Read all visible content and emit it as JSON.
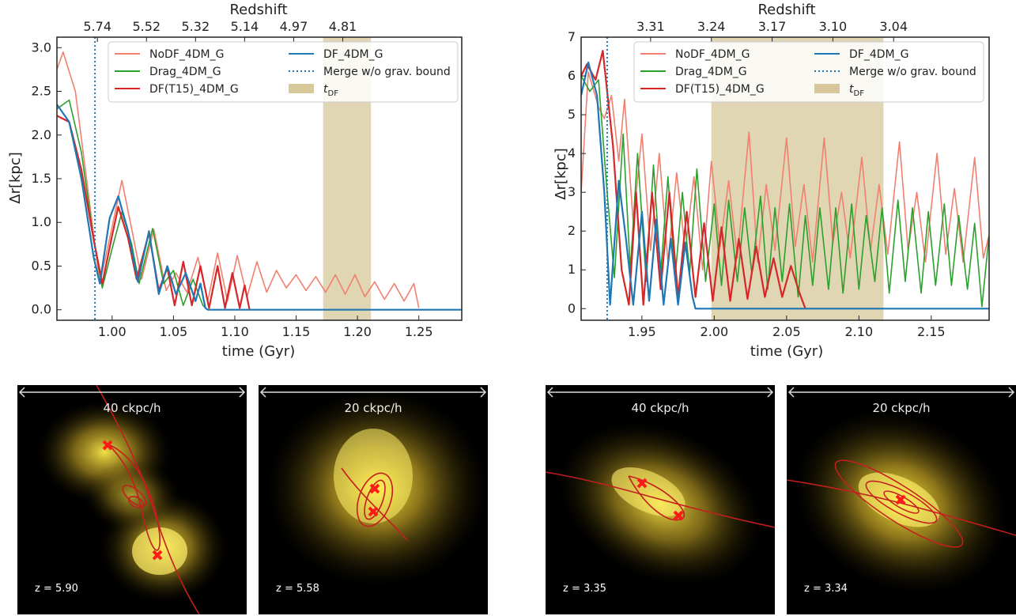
{
  "chart_data": [
    {
      "type": "line",
      "panel": "top-left",
      "xlabel": "time (Gyr)",
      "ylabel": "Δr[kpc]",
      "top_axis_label": "Redshift",
      "xlim": [
        0.955,
        1.285
      ],
      "ylim": [
        -0.12,
        3.12
      ],
      "xticks": [
        "1.00",
        "1.05",
        "1.10",
        "1.15",
        "1.20",
        "1.25"
      ],
      "yticks": [
        "0.0",
        "0.5",
        "1.0",
        "1.5",
        "2.0",
        "2.5",
        "3.0"
      ],
      "redshift_ticks": [
        "5.74",
        "5.52",
        "5.32",
        "5.14",
        "4.97",
        "4.81"
      ],
      "redshift_tick_times": [
        0.988,
        1.028,
        1.068,
        1.108,
        1.148,
        1.188
      ],
      "merge_time": 0.986,
      "tdf_span": [
        1.172,
        1.211
      ],
      "legend_location": "top-right",
      "series": [
        {
          "name": "NoDF_4DM_G",
          "color": "#f08070",
          "end_time": 1.25,
          "points": [
            [
              0.955,
              2.75
            ],
            [
              0.96,
              2.95
            ],
            [
              0.97,
              2.5
            ],
            [
              0.98,
              1.4
            ],
            [
              0.99,
              0.3
            ],
            [
              1.0,
              0.95
            ],
            [
              1.008,
              1.48
            ],
            [
              1.017,
              0.85
            ],
            [
              1.024,
              0.35
            ],
            [
              1.034,
              0.92
            ],
            [
              1.044,
              0.22
            ],
            [
              1.052,
              0.42
            ],
            [
              1.061,
              0.2
            ],
            [
              1.07,
              0.6
            ],
            [
              1.078,
              0.1
            ],
            [
              1.086,
              0.65
            ],
            [
              1.094,
              0.1
            ],
            [
              1.102,
              0.62
            ],
            [
              1.11,
              0.15
            ],
            [
              1.118,
              0.55
            ],
            [
              1.126,
              0.2
            ],
            [
              1.134,
              0.45
            ],
            [
              1.142,
              0.25
            ],
            [
              1.15,
              0.4
            ],
            [
              1.158,
              0.22
            ],
            [
              1.166,
              0.38
            ],
            [
              1.174,
              0.2
            ],
            [
              1.182,
              0.4
            ],
            [
              1.19,
              0.18
            ],
            [
              1.198,
              0.4
            ],
            [
              1.206,
              0.15
            ],
            [
              1.214,
              0.32
            ],
            [
              1.222,
              0.12
            ],
            [
              1.23,
              0.3
            ],
            [
              1.238,
              0.1
            ],
            [
              1.246,
              0.3
            ],
            [
              1.25,
              0.02
            ]
          ]
        },
        {
          "name": "Drag_4DM_G",
          "color": "#2ca02c",
          "end_time": 1.078,
          "points": [
            [
              0.955,
              2.3
            ],
            [
              0.965,
              2.4
            ],
            [
              0.975,
              1.8
            ],
            [
              0.985,
              0.8
            ],
            [
              0.992,
              0.25
            ],
            [
              1.0,
              0.7
            ],
            [
              1.008,
              1.12
            ],
            [
              1.016,
              0.75
            ],
            [
              1.022,
              0.3
            ],
            [
              1.033,
              0.93
            ],
            [
              1.042,
              0.3
            ],
            [
              1.05,
              0.45
            ],
            [
              1.058,
              0.05
            ],
            [
              1.066,
              0.35
            ],
            [
              1.074,
              0.05
            ],
            [
              1.078,
              0.0
            ]
          ]
        },
        {
          "name": "DF(T15)_4DM_G",
          "color": "#d62728",
          "end_time": 1.112,
          "points": [
            [
              0.955,
              2.22
            ],
            [
              0.965,
              2.15
            ],
            [
              0.975,
              1.6
            ],
            [
              0.985,
              0.8
            ],
            [
              0.992,
              0.3
            ],
            [
              1.0,
              0.85
            ],
            [
              1.005,
              1.18
            ],
            [
              1.013,
              0.82
            ],
            [
              1.02,
              0.35
            ],
            [
              1.03,
              0.88
            ],
            [
              1.038,
              0.22
            ],
            [
              1.045,
              0.48
            ],
            [
              1.051,
              0.05
            ],
            [
              1.058,
              0.55
            ],
            [
              1.065,
              0.05
            ],
            [
              1.072,
              0.5
            ],
            [
              1.079,
              0.02
            ],
            [
              1.086,
              0.5
            ],
            [
              1.092,
              0.02
            ],
            [
              1.098,
              0.42
            ],
            [
              1.104,
              0.02
            ],
            [
              1.108,
              0.28
            ],
            [
              1.112,
              0.0
            ]
          ]
        },
        {
          "name": "DF_4DM_G",
          "color": "#1f77b4",
          "end_time": 1.285,
          "points": [
            [
              0.955,
              2.35
            ],
            [
              0.965,
              2.15
            ],
            [
              0.975,
              1.5
            ],
            [
              0.985,
              0.6
            ],
            [
              0.99,
              0.3
            ],
            [
              0.998,
              1.05
            ],
            [
              1.005,
              1.3
            ],
            [
              1.013,
              0.9
            ],
            [
              1.021,
              0.32
            ],
            [
              1.03,
              0.9
            ],
            [
              1.038,
              0.18
            ],
            [
              1.045,
              0.5
            ],
            [
              1.052,
              0.18
            ],
            [
              1.06,
              0.42
            ],
            [
              1.068,
              0.1
            ],
            [
              1.072,
              0.3
            ],
            [
              1.076,
              0.02
            ],
            [
              1.078,
              0.0
            ],
            [
              1.285,
              0.0
            ]
          ]
        }
      ]
    },
    {
      "type": "line",
      "panel": "top-right",
      "xlabel": "time (Gyr)",
      "ylabel": "Δr[kpc]",
      "top_axis_label": "Redshift",
      "xlim": [
        1.908,
        2.19
      ],
      "ylim": [
        -0.3,
        7.0
      ],
      "xticks": [
        "1.95",
        "2.00",
        "2.05",
        "2.10",
        "2.15"
      ],
      "yticks": [
        "0",
        "1",
        "2",
        "3",
        "4",
        "5",
        "6",
        "7"
      ],
      "redshift_ticks": [
        "3.31",
        "3.24",
        "3.17",
        "3.10",
        "3.04"
      ],
      "redshift_tick_times": [
        1.956,
        1.998,
        2.04,
        2.082,
        2.124
      ],
      "merge_time": 1.926,
      "tdf_span": [
        1.998,
        2.117
      ],
      "legend_location": "top-right",
      "series": [
        {
          "name": "NoDF_4DM_G",
          "color": "#f08070",
          "end_time": 2.19,
          "points": [
            [
              1.908,
              3.0
            ],
            [
              1.913,
              6.1
            ],
            [
              1.92,
              5.2
            ],
            [
              1.924,
              4.9
            ],
            [
              1.929,
              5.5
            ],
            [
              1.934,
              3.8
            ],
            [
              1.938,
              5.4
            ],
            [
              1.944,
              2.2
            ],
            [
              1.95,
              4.5
            ],
            [
              1.956,
              1.5
            ],
            [
              1.962,
              4.0
            ],
            [
              1.968,
              1.2
            ],
            [
              1.974,
              3.5
            ],
            [
              1.98,
              1.5
            ],
            [
              1.986,
              3.4
            ],
            [
              1.992,
              1.0
            ],
            [
              1.998,
              3.8
            ],
            [
              2.004,
              1.6
            ],
            [
              2.01,
              3.3
            ],
            [
              2.016,
              1.3
            ],
            [
              2.024,
              4.55
            ],
            [
              2.03,
              1.2
            ],
            [
              2.036,
              3.2
            ],
            [
              2.042,
              1.5
            ],
            [
              2.05,
              4.4
            ],
            [
              2.056,
              1.6
            ],
            [
              2.062,
              3.2
            ],
            [
              2.068,
              1.2
            ],
            [
              2.076,
              4.4
            ],
            [
              2.082,
              1.7
            ],
            [
              2.088,
              3.0
            ],
            [
              2.094,
              1.3
            ],
            [
              2.102,
              3.9
            ],
            [
              2.108,
              1.5
            ],
            [
              2.114,
              3.2
            ],
            [
              2.12,
              1.4
            ],
            [
              2.128,
              4.3
            ],
            [
              2.134,
              1.5
            ],
            [
              2.14,
              3.0
            ],
            [
              2.146,
              1.2
            ],
            [
              2.154,
              4.0
            ],
            [
              2.16,
              1.4
            ],
            [
              2.166,
              3.1
            ],
            [
              2.172,
              1.2
            ],
            [
              2.18,
              3.9
            ],
            [
              2.186,
              1.3
            ],
            [
              2.19,
              1.9
            ]
          ]
        },
        {
          "name": "Drag_4DM_G",
          "color": "#2ca02c",
          "end_time": 2.19,
          "points": [
            [
              1.908,
              6.0
            ],
            [
              1.914,
              5.6
            ],
            [
              1.92,
              5.9
            ],
            [
              1.926,
              3.0
            ],
            [
              1.931,
              0.8
            ],
            [
              1.937,
              4.5
            ],
            [
              1.942,
              1.0
            ],
            [
              1.947,
              4.0
            ],
            [
              1.953,
              0.7
            ],
            [
              1.958,
              3.7
            ],
            [
              1.963,
              0.9
            ],
            [
              1.968,
              3.4
            ],
            [
              1.973,
              0.8
            ],
            [
              1.978,
              3.0
            ],
            [
              1.983,
              0.9
            ],
            [
              1.988,
              3.6
            ],
            [
              1.994,
              0.7
            ],
            [
              2.0,
              2.7
            ],
            [
              2.005,
              0.6
            ],
            [
              2.01,
              2.8
            ],
            [
              2.016,
              0.7
            ],
            [
              2.021,
              2.6
            ],
            [
              2.026,
              0.9
            ],
            [
              2.032,
              2.9
            ],
            [
              2.037,
              0.5
            ],
            [
              2.042,
              2.6
            ],
            [
              2.047,
              0.7
            ],
            [
              2.052,
              2.7
            ],
            [
              2.058,
              0.3
            ],
            [
              2.063,
              2.4
            ],
            [
              2.068,
              0.6
            ],
            [
              2.073,
              2.6
            ],
            [
              2.079,
              0.5
            ],
            [
              2.084,
              2.6
            ],
            [
              2.089,
              0.4
            ],
            [
              2.095,
              2.7
            ],
            [
              2.1,
              0.5
            ],
            [
              2.105,
              2.4
            ],
            [
              2.111,
              0.7
            ],
            [
              2.116,
              2.6
            ],
            [
              2.121,
              0.4
            ],
            [
              2.127,
              2.8
            ],
            [
              2.132,
              0.7
            ],
            [
              2.137,
              2.6
            ],
            [
              2.143,
              0.4
            ],
            [
              2.148,
              2.5
            ],
            [
              2.153,
              0.6
            ],
            [
              2.159,
              2.7
            ],
            [
              2.164,
              0.6
            ],
            [
              2.169,
              2.4
            ],
            [
              2.175,
              0.5
            ],
            [
              2.18,
              2.2
            ],
            [
              2.185,
              0.05
            ],
            [
              2.19,
              1.9
            ]
          ]
        },
        {
          "name": "DF(T15)_4DM_G",
          "color": "#d62728",
          "end_time": 2.063,
          "points": [
            [
              1.908,
              6.0
            ],
            [
              1.912,
              6.3
            ],
            [
              1.918,
              5.9
            ],
            [
              1.923,
              6.65
            ],
            [
              1.93,
              4.2
            ],
            [
              1.936,
              1.0
            ],
            [
              1.941,
              0.1
            ],
            [
              1.946,
              3.0
            ],
            [
              1.951,
              0.1
            ],
            [
              1.957,
              3.0
            ],
            [
              1.963,
              0.5
            ],
            [
              1.969,
              3.0
            ],
            [
              1.975,
              0.3
            ],
            [
              1.981,
              2.5
            ],
            [
              1.987,
              0.3
            ],
            [
              1.993,
              2.2
            ],
            [
              1.999,
              0.2
            ],
            [
              2.005,
              2.1
            ],
            [
              2.011,
              0.2
            ],
            [
              2.017,
              1.8
            ],
            [
              2.023,
              0.25
            ],
            [
              2.029,
              1.6
            ],
            [
              2.035,
              0.3
            ],
            [
              2.041,
              1.3
            ],
            [
              2.047,
              0.3
            ],
            [
              2.053,
              1.1
            ],
            [
              2.059,
              0.4
            ],
            [
              2.063,
              0.0
            ]
          ]
        },
        {
          "name": "DF_4DM_G",
          "color": "#1f77b4",
          "end_time": 2.19,
          "points": [
            [
              1.908,
              5.5
            ],
            [
              1.913,
              6.35
            ],
            [
              1.919,
              5.5
            ],
            [
              1.924,
              3.0
            ],
            [
              1.928,
              0.1
            ],
            [
              1.934,
              3.3
            ],
            [
              1.939,
              1.8
            ],
            [
              1.944,
              0.1
            ],
            [
              1.95,
              2.5
            ],
            [
              1.955,
              0.2
            ],
            [
              1.96,
              2.3
            ],
            [
              1.965,
              0.1
            ],
            [
              1.97,
              1.8
            ],
            [
              1.975,
              0.1
            ],
            [
              1.98,
              1.7
            ],
            [
              1.985,
              0.3
            ],
            [
              1.987,
              0.0
            ],
            [
              2.19,
              0.0
            ]
          ]
        }
      ]
    }
  ],
  "thumbnails": [
    {
      "scale": "40 ckpc/h",
      "redshift": "z = 5.90"
    },
    {
      "scale": "20 ckpc/h",
      "redshift": "z = 5.58"
    },
    {
      "scale": "40 ckpc/h",
      "redshift": "z = 3.35"
    },
    {
      "scale": "20 ckpc/h",
      "redshift": "z = 3.34"
    }
  ],
  "colors": {
    "tdf_span": "#d6c89a",
    "merge_line": "#1f77b4",
    "glow": "#ffe84a",
    "orbit": "#c41e1e",
    "marker": "#ff1a1a"
  }
}
